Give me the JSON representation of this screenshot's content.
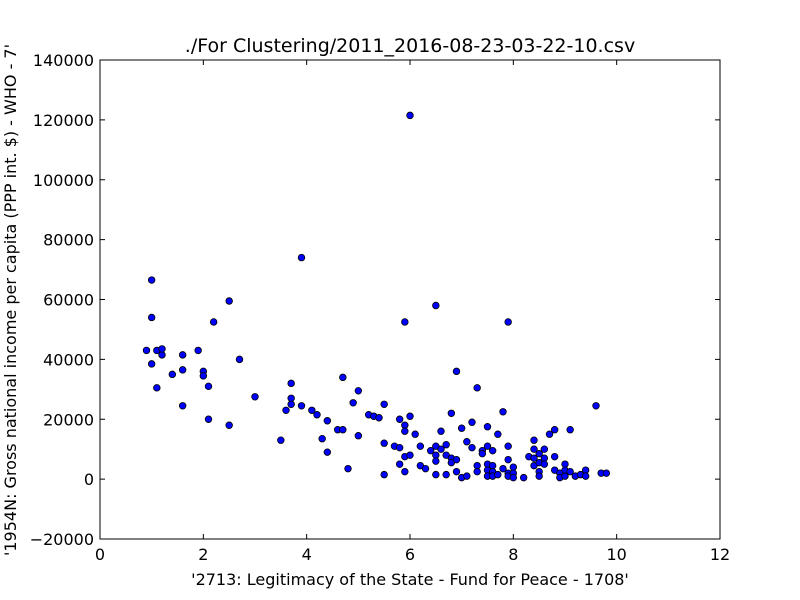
{
  "chart_data": {
    "type": "scatter",
    "title": "./For Clustering/2011_2016-08-23-03-22-10.csv",
    "xlabel": "'2713: Legitimacy of the State - Fund for Peace - 1708'",
    "ylabel": "'1954N: Gross national income per capita (PPP int. $) - WHO - 7'",
    "xlim": [
      0,
      12
    ],
    "ylim": [
      -20000,
      140000
    ],
    "xticks": [
      "0",
      "2",
      "4",
      "6",
      "8",
      "10",
      "12"
    ],
    "yticks": [
      "−20000",
      "0",
      "20000",
      "40000",
      "60000",
      "80000",
      "100000",
      "120000",
      "140000"
    ],
    "grid": false,
    "marker_color": "#0000ff",
    "marker_edge": "#000000",
    "points": [
      [
        0.9,
        43000
      ],
      [
        1.0,
        66500
      ],
      [
        1.0,
        54000
      ],
      [
        1.0,
        38500
      ],
      [
        1.1,
        43000
      ],
      [
        1.1,
        30500
      ],
      [
        1.2,
        41500
      ],
      [
        1.2,
        43500
      ],
      [
        1.4,
        35000
      ],
      [
        1.6,
        41500
      ],
      [
        1.6,
        36500
      ],
      [
        1.6,
        24500
      ],
      [
        1.9,
        43000
      ],
      [
        2.0,
        36000
      ],
      [
        2.0,
        34500
      ],
      [
        2.1,
        31000
      ],
      [
        2.1,
        20000
      ],
      [
        2.2,
        52500
      ],
      [
        2.5,
        59500
      ],
      [
        2.5,
        18000
      ],
      [
        2.7,
        40000
      ],
      [
        3.0,
        27500
      ],
      [
        3.5,
        13000
      ],
      [
        3.6,
        23000
      ],
      [
        3.7,
        32000
      ],
      [
        3.7,
        27000
      ],
      [
        3.7,
        25000
      ],
      [
        3.9,
        74000
      ],
      [
        3.9,
        24500
      ],
      [
        4.1,
        23000
      ],
      [
        4.2,
        21500
      ],
      [
        4.3,
        13500
      ],
      [
        4.4,
        19500
      ],
      [
        4.4,
        9000
      ],
      [
        4.6,
        16500
      ],
      [
        4.7,
        34000
      ],
      [
        4.7,
        16500
      ],
      [
        4.8,
        3500
      ],
      [
        4.9,
        25500
      ],
      [
        5.0,
        29500
      ],
      [
        5.0,
        14500
      ],
      [
        5.2,
        21500
      ],
      [
        5.3,
        21000
      ],
      [
        5.4,
        20500
      ],
      [
        5.5,
        25000
      ],
      [
        5.5,
        12000
      ],
      [
        5.5,
        1500
      ],
      [
        5.7,
        11000
      ],
      [
        5.8,
        20000
      ],
      [
        5.8,
        10500
      ],
      [
        5.8,
        5000
      ],
      [
        5.9,
        52500
      ],
      [
        5.9,
        18000
      ],
      [
        5.9,
        16000
      ],
      [
        5.9,
        7500
      ],
      [
        5.9,
        2500
      ],
      [
        6.0,
        121500
      ],
      [
        6.0,
        21000
      ],
      [
        6.0,
        8000
      ],
      [
        6.1,
        15000
      ],
      [
        6.2,
        11000
      ],
      [
        6.2,
        4500
      ],
      [
        6.3,
        3500
      ],
      [
        6.4,
        9500
      ],
      [
        6.5,
        58000
      ],
      [
        6.5,
        11000
      ],
      [
        6.5,
        8000
      ],
      [
        6.5,
        6000
      ],
      [
        6.5,
        1500
      ],
      [
        6.6,
        16000
      ],
      [
        6.6,
        10000
      ],
      [
        6.7,
        11500
      ],
      [
        6.7,
        8000
      ],
      [
        6.7,
        1500
      ],
      [
        6.8,
        22000
      ],
      [
        6.8,
        7000
      ],
      [
        6.8,
        5500
      ],
      [
        6.9,
        36000
      ],
      [
        6.9,
        6500
      ],
      [
        6.9,
        2500
      ],
      [
        7.0,
        17000
      ],
      [
        7.0,
        500
      ],
      [
        7.1,
        12500
      ],
      [
        7.1,
        1000
      ],
      [
        7.2,
        19000
      ],
      [
        7.2,
        10500
      ],
      [
        7.3,
        30500
      ],
      [
        7.3,
        4500
      ],
      [
        7.3,
        2500
      ],
      [
        7.4,
        9500
      ],
      [
        7.4,
        8500
      ],
      [
        7.5,
        17500
      ],
      [
        7.5,
        11000
      ],
      [
        7.5,
        5000
      ],
      [
        7.5,
        3000
      ],
      [
        7.5,
        1000
      ],
      [
        7.6,
        9500
      ],
      [
        7.6,
        4500
      ],
      [
        7.6,
        2500
      ],
      [
        7.6,
        1000
      ],
      [
        7.7,
        15000
      ],
      [
        7.7,
        1500
      ],
      [
        7.8,
        22500
      ],
      [
        7.8,
        3500
      ],
      [
        7.9,
        52500
      ],
      [
        7.9,
        11000
      ],
      [
        7.9,
        6500
      ],
      [
        7.9,
        2000
      ],
      [
        7.9,
        1000
      ],
      [
        8.0,
        4000
      ],
      [
        8.0,
        2000
      ],
      [
        8.0,
        500
      ],
      [
        8.2,
        500
      ],
      [
        8.3,
        7500
      ],
      [
        8.4,
        13000
      ],
      [
        8.4,
        10000
      ],
      [
        8.4,
        7000
      ],
      [
        8.4,
        4500
      ],
      [
        8.5,
        8500
      ],
      [
        8.5,
        5500
      ],
      [
        8.5,
        2500
      ],
      [
        8.5,
        1000
      ],
      [
        8.6,
        10000
      ],
      [
        8.6,
        7000
      ],
      [
        8.6,
        5000
      ],
      [
        8.7,
        15000
      ],
      [
        8.8,
        16500
      ],
      [
        8.8,
        7500
      ],
      [
        8.8,
        3000
      ],
      [
        8.9,
        2000
      ],
      [
        8.9,
        500
      ],
      [
        9.0,
        5000
      ],
      [
        9.0,
        3000
      ],
      [
        9.0,
        1000
      ],
      [
        9.1,
        16500
      ],
      [
        9.1,
        2500
      ],
      [
        9.2,
        1000
      ],
      [
        9.3,
        1500
      ],
      [
        9.4,
        3000
      ],
      [
        9.4,
        1000
      ],
      [
        9.6,
        24500
      ],
      [
        9.7,
        2000
      ],
      [
        9.8,
        2000
      ]
    ]
  }
}
